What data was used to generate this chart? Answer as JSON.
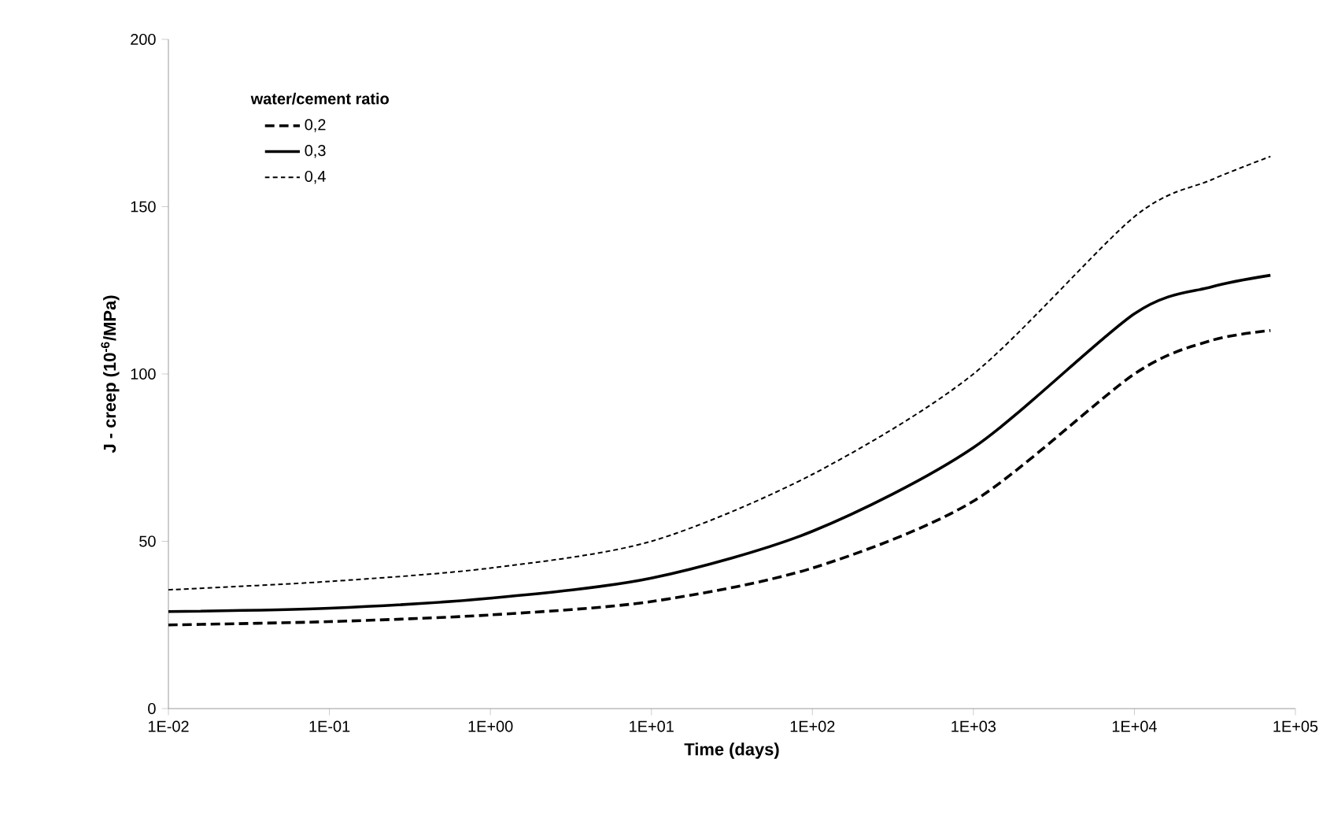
{
  "chart_data": {
    "type": "line",
    "xlabel": "Time (days)",
    "ylabel": "J - creep (10$^{-6}$/MPa)",
    "legend_title": "water/cement ratio",
    "legend": "top left",
    "log": "x",
    "x": [
      0.01,
      0.1,
      1,
      10,
      100,
      1000,
      10000,
      30000,
      70000
    ],
    "series": [
      {
        "name": "0,2",
        "color": "#000000",
        "line_style": "dashed",
        "values": [
          25,
          26,
          28,
          32,
          42,
          62,
          100,
          110,
          113
        ]
      },
      {
        "name": "0,3",
        "color": "#000000",
        "line_style": "solid",
        "values": [
          29,
          30,
          33,
          39,
          53,
          78,
          118,
          126,
          129.5
        ]
      },
      {
        "name": "0,4",
        "color": "#000000",
        "line_style": "dotted",
        "values": [
          35.5,
          38,
          42,
          50,
          70,
          100,
          147,
          158,
          165
        ]
      }
    ],
    "xlim": [
      0.01,
      100000
    ],
    "xticks": [
      {
        "value": 0.01,
        "label": "1E-02"
      },
      {
        "value": 0.1,
        "label": "1E-01"
      },
      {
        "value": 1,
        "label": "1E+00"
      },
      {
        "value": 10,
        "label": "1E+01"
      },
      {
        "value": 100,
        "label": "1E+02"
      },
      {
        "value": 1000,
        "label": "1E+03"
      },
      {
        "value": 10000,
        "label": "1E+04"
      },
      {
        "value": 100000,
        "label": "1E+05"
      }
    ],
    "ylim": [
      0,
      200
    ],
    "yticks": [
      0,
      50,
      100,
      150,
      200
    ]
  }
}
